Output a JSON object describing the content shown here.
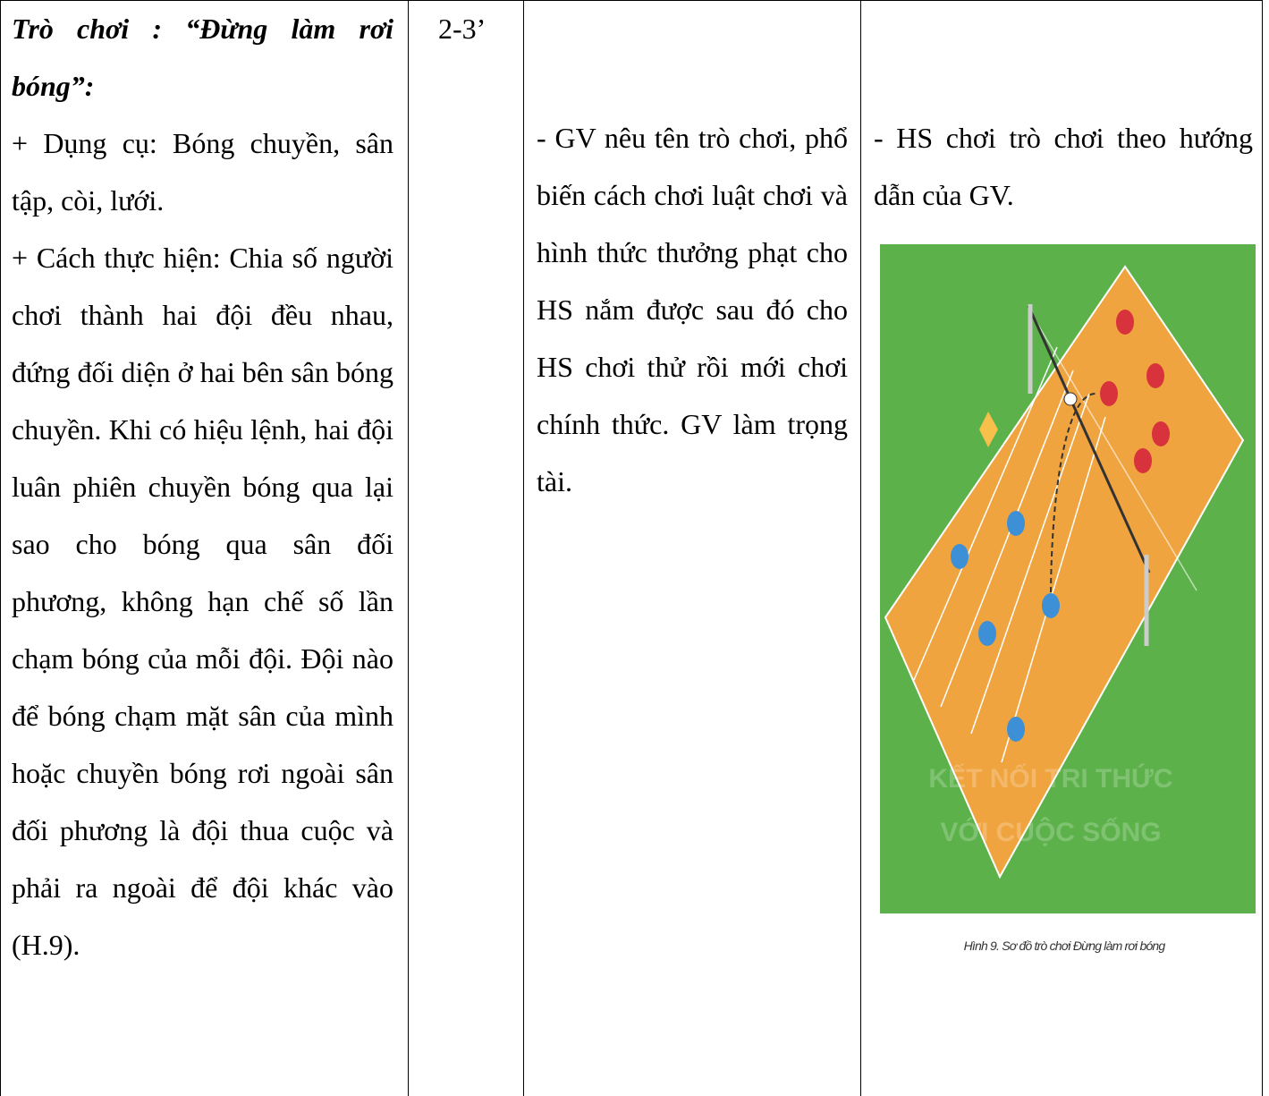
{
  "table": {
    "rows": [
      {
        "game": {
          "title": "Trò chơi : “Đừng làm rơi bóng”:",
          "items": [
            "+ Dụng cụ: Bóng chuyền, sân tập, còi, lưới.",
            "+ Cách thực hiện: Chia số người chơi thành hai đội đều nhau, đứng đối diện ở hai bên sân bóng chuyền. Khi có hiệu lệnh, hai đội luân phiên chuyền bóng qua lại sao cho bóng qua sân đối phương, không hạn chế số lần chạm bóng của mỗi đội. Đội nào để bóng chạm mặt sân của mình hoặc chuyền bóng rơi ngoài sân đối phương là đội thua cuộc và phải ra ngoài để đội khác vào (H.9)."
          ]
        },
        "time": "2-3’",
        "teacher": "- GV nêu tên trò chơi, phổ biến cách chơi luật chơi và hình thức thưởng phạt cho HS nắm được sau đó cho HS chơi thử rồi mới chơi chính thức. GV làm trọng tài.",
        "student": "- HS chơi trò chơi theo hướng dẫn của GV.",
        "figure": {
          "watermark": [
            "KẾT NỐI TRI THỨC",
            "VỚI CUỘC SỐNG"
          ],
          "caption": "Hình 9. Sơ đồ trò chơi Đừng làm rơi bóng"
        }
      }
    ]
  }
}
